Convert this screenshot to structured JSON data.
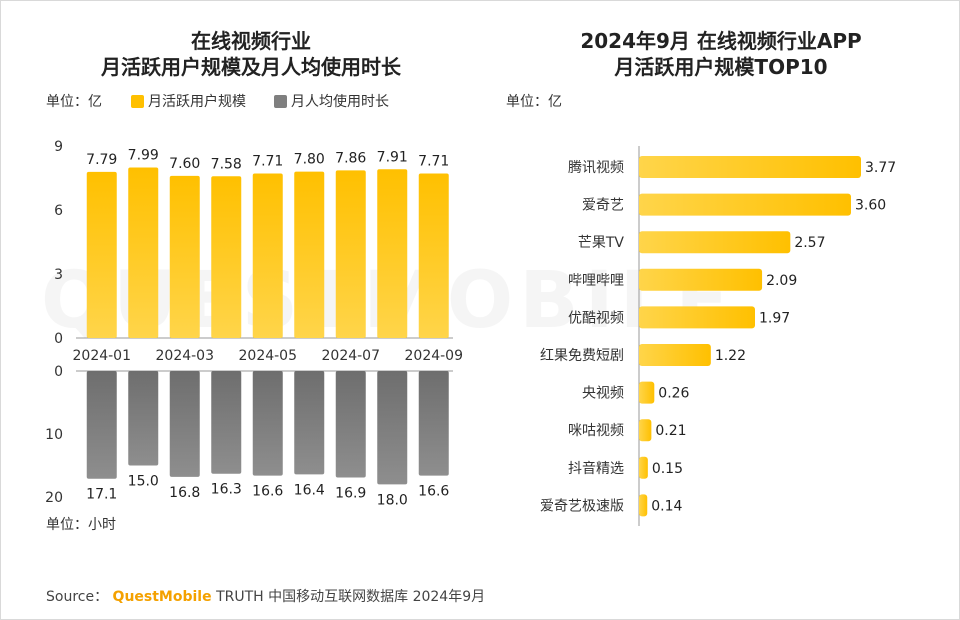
{
  "left": {
    "title_line1": "在线视频行业",
    "title_line2": "月活跃用户规模及月人均使用时长",
    "unit_top": "单位：亿",
    "unit_bottom": "单位：小时",
    "legend": [
      "月活跃用户规模",
      "月人均使用时长"
    ],
    "x_tick_labels": [
      "2024-01",
      "2024-03",
      "2024-05",
      "2024-07",
      "2024-09"
    ]
  },
  "right": {
    "title_line1": "2024年9月 在线视频行业APP",
    "title_line2": "月活跃用户规模TOP10",
    "unit": "单位：亿"
  },
  "colors": {
    "gold": "#FFC000",
    "gold_light": "#FFD54A",
    "gray": "#7F7F7F",
    "gray_dark": "#6E6E6E"
  },
  "chart_data": [
    {
      "type": "bar",
      "categories": [
        "2024-01",
        "2024-02",
        "2024-03",
        "2024-04",
        "2024-05",
        "2024-06",
        "2024-07",
        "2024-08",
        "2024-09"
      ],
      "series": [
        {
          "name": "月活跃用户规模",
          "values": [
            7.79,
            7.99,
            7.6,
            7.58,
            7.71,
            7.8,
            7.86,
            7.91,
            7.71
          ]
        }
      ],
      "ylabel": "单位：亿",
      "ylim": [
        0,
        9
      ],
      "yticks": [
        0,
        3,
        6,
        9
      ]
    },
    {
      "type": "bar",
      "categories": [
        "2024-01",
        "2024-02",
        "2024-03",
        "2024-04",
        "2024-05",
        "2024-06",
        "2024-07",
        "2024-08",
        "2024-09"
      ],
      "series": [
        {
          "name": "月人均使用时长",
          "values": [
            17.1,
            15.0,
            16.8,
            16.3,
            16.6,
            16.4,
            16.9,
            18.0,
            16.6
          ]
        }
      ],
      "ylabel": "单位：小时",
      "ylim": [
        0,
        20
      ],
      "yticks": [
        0,
        10,
        20
      ]
    },
    {
      "type": "bar",
      "orientation": "horizontal",
      "categories": [
        "腾讯视频",
        "爱奇艺",
        "芒果TV",
        "哔哩哔哩",
        "优酷视频",
        "红果免费短剧",
        "央视频",
        "咪咕视频",
        "抖音精选",
        "爱奇艺极速版"
      ],
      "values": [
        3.77,
        3.6,
        2.57,
        2.09,
        1.97,
        1.22,
        0.26,
        0.21,
        0.15,
        0.14
      ],
      "title": "2024年9月 在线视频行业APP 月活跃用户规模TOP10"
    }
  ],
  "source": {
    "prefix": "Source：",
    "brand": "QuestMobile",
    "rest": "TRUTH 中国移动互联网数据库 2024年9月"
  },
  "watermark": "QUESTMOBILE"
}
